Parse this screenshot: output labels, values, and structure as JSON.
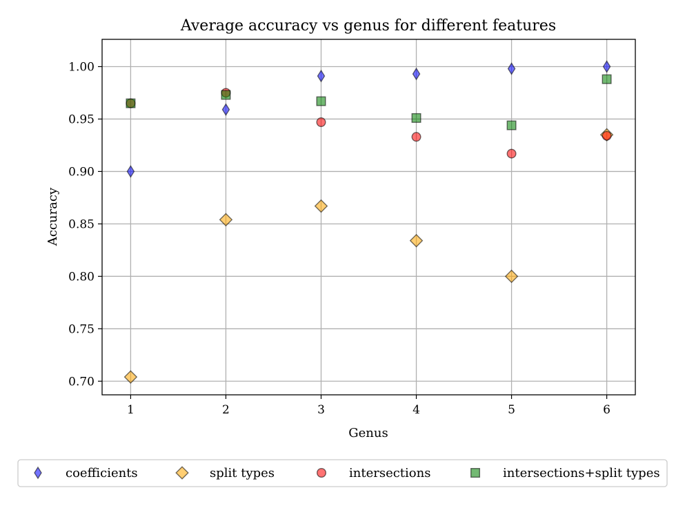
{
  "chart_data": {
    "type": "scatter",
    "title": "Average accuracy vs genus for different features",
    "xlabel": "Genus",
    "ylabel": "Accuracy",
    "xlim": [
      0.7,
      6.3
    ],
    "ylim": [
      0.687,
      1.026
    ],
    "xticks": [
      1,
      2,
      3,
      4,
      5,
      6
    ],
    "xtick_labels": [
      "1",
      "2",
      "3",
      "4",
      "5",
      "6"
    ],
    "yticks": [
      0.7,
      0.75,
      0.8,
      0.85,
      0.9,
      0.95,
      1.0
    ],
    "ytick_labels": [
      "0.70",
      "0.75",
      "0.80",
      "0.85",
      "0.90",
      "0.95",
      "1.00"
    ],
    "grid": true,
    "legend_position": "bottom",
    "series": [
      {
        "name": "coefficients",
        "marker": "thin-diamond",
        "color": "#0000ff",
        "x": [
          1,
          2,
          3,
          4,
          5,
          6
        ],
        "values": [
          0.9,
          0.959,
          0.991,
          0.993,
          0.998,
          1.0
        ]
      },
      {
        "name": "split types",
        "marker": "diamond",
        "color": "#ffa500",
        "x": [
          1,
          2,
          3,
          4,
          5,
          6
        ],
        "values": [
          0.704,
          0.854,
          0.867,
          0.834,
          0.8,
          0.935
        ]
      },
      {
        "name": "intersections",
        "marker": "circle",
        "color": "#ff0000",
        "x": [
          1,
          2,
          3,
          4,
          5,
          6
        ],
        "values": [
          0.965,
          0.975,
          0.947,
          0.933,
          0.917,
          0.934
        ]
      },
      {
        "name": "intersections+split types",
        "marker": "square",
        "color": "#008000",
        "x": [
          1,
          2,
          3,
          4,
          5,
          6
        ],
        "values": [
          0.965,
          0.973,
          0.967,
          0.951,
          0.944,
          0.988
        ]
      }
    ]
  }
}
